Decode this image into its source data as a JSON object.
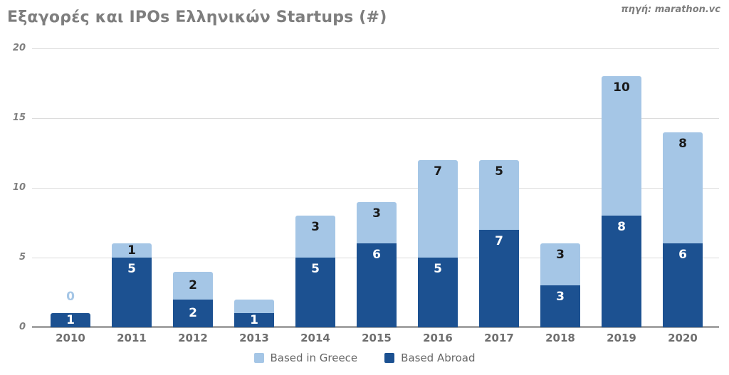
{
  "header": {
    "title": "Εξαγορές και IPOs Ελληνικών Startups (#)",
    "source": "πηγή: marathon.vc"
  },
  "chart_data": {
    "type": "bar",
    "stacked": true,
    "title": "Εξαγορές και IPOs Ελληνικών Startups (#)",
    "source": "πηγή: marathon.vc",
    "categories": [
      "2010",
      "2011",
      "2012",
      "2013",
      "2014",
      "2015",
      "2016",
      "2017",
      "2018",
      "2019",
      "2020"
    ],
    "series": [
      {
        "name": "Based Abroad",
        "color": "#1c5191",
        "label_color": "#ffffff",
        "values": [
          1,
          5,
          2,
          1,
          5,
          6,
          5,
          7,
          3,
          8,
          6
        ],
        "labels": [
          "1",
          "5",
          "2",
          "1",
          "5",
          "6",
          "5",
          "7",
          "3",
          "8",
          "6"
        ]
      },
      {
        "name": "Based in Greece",
        "color": "#a5c6e6",
        "label_color": "#1a1a1a",
        "values": [
          0,
          1,
          2,
          1,
          3,
          3,
          7,
          5,
          3,
          10,
          8
        ],
        "labels": [
          "0",
          "1",
          "2",
          "",
          "3",
          "3",
          "7",
          "5",
          "3",
          "10",
          "8"
        ]
      }
    ],
    "totals": [
      1,
      6,
      4,
      2,
      8,
      9,
      12,
      12,
      6,
      18,
      14
    ],
    "xlabel": "",
    "ylabel": "",
    "ylim": [
      0,
      20
    ],
    "yticks": [
      "0",
      "5",
      "10",
      "15",
      "20"
    ],
    "grid": true,
    "legend_position": "bottom",
    "legend": [
      {
        "label": "Based in Greece",
        "color": "#a5c6e6"
      },
      {
        "label": "Based Abroad",
        "color": "#1c5191"
      }
    ]
  }
}
